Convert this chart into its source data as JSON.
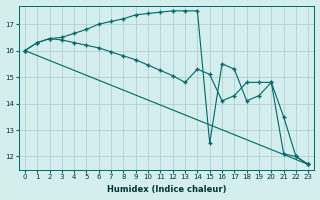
{
  "title": "",
  "xlabel": "Humidex (Indice chaleur)",
  "ylabel": "",
  "line_color": "#006666",
  "background_color": "#d4eeee",
  "grid_color": "#aacccc",
  "xlim": [
    -0.5,
    23.5
  ],
  "ylim": [
    11.5,
    17.7
  ],
  "xticks": [
    0,
    1,
    2,
    3,
    4,
    5,
    6,
    7,
    8,
    9,
    10,
    11,
    12,
    13,
    14,
    15,
    16,
    17,
    18,
    19,
    20,
    21,
    22,
    23
  ],
  "yticks": [
    12,
    13,
    14,
    15,
    16,
    17
  ],
  "lines": [
    {
      "x": [
        0,
        1,
        2,
        3,
        4,
        5,
        6,
        7,
        8,
        9,
        10,
        11,
        12,
        13,
        14,
        15,
        16,
        17,
        18,
        19,
        20,
        21,
        22,
        23
      ],
      "y": [
        16.0,
        16.3,
        16.45,
        16.5,
        16.65,
        16.8,
        17.0,
        17.1,
        17.2,
        17.35,
        17.4,
        17.45,
        17.5,
        17.5,
        17.5,
        12.5,
        15.5,
        15.3,
        14.1,
        14.3,
        14.8,
        12.1,
        12.0,
        11.7
      ]
    },
    {
      "x": [
        0,
        1,
        2,
        3,
        4,
        5,
        6,
        7,
        8,
        9,
        10,
        11,
        12,
        13,
        14,
        15,
        16,
        17,
        18,
        19,
        20,
        21,
        22,
        23
      ],
      "y": [
        16.0,
        16.3,
        16.45,
        16.4,
        16.3,
        16.2,
        16.1,
        15.95,
        15.8,
        15.65,
        15.45,
        15.25,
        15.05,
        14.8,
        15.3,
        15.1,
        14.1,
        14.3,
        14.8,
        14.8,
        14.8,
        13.5,
        12.0,
        11.7
      ]
    },
    {
      "x": [
        0,
        23
      ],
      "y": [
        16.0,
        11.7
      ]
    }
  ]
}
